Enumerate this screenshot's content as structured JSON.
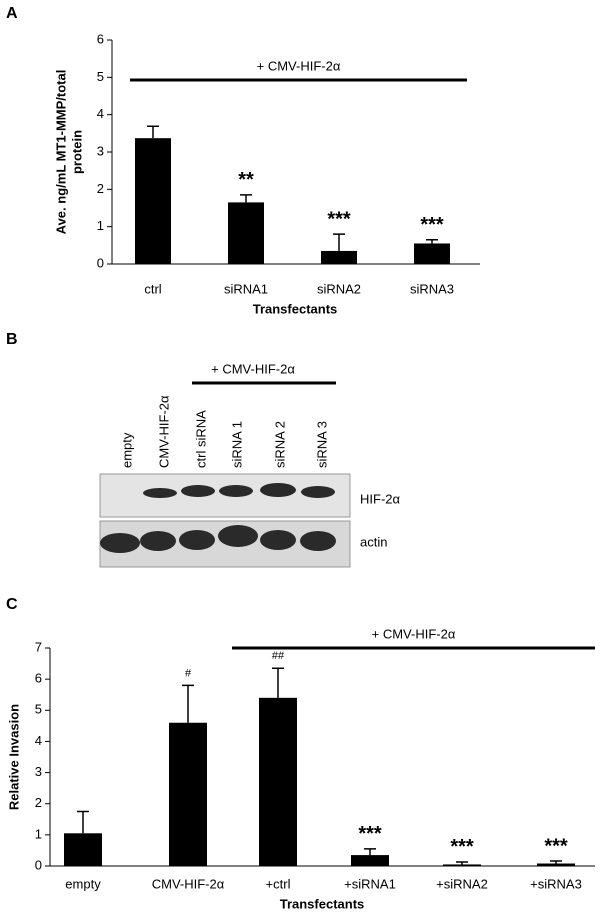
{
  "chart_data": [
    {
      "type": "bar",
      "panel": "A",
      "title": "+ CMV-HIF-2α",
      "ylabel": [
        "Ave. ng/mL MT1-MMP/total",
        "protein"
      ],
      "xlabel": "Transfectants",
      "categories": [
        "ctrl",
        "siRNA1",
        "siRNA2",
        "siRNA3"
      ],
      "values": [
        3.37,
        1.65,
        0.35,
        0.55
      ],
      "errors": [
        0.32,
        0.2,
        0.45,
        0.1
      ],
      "annotations": [
        null,
        "**",
        "***",
        "***"
      ],
      "color": "#000000",
      "ylim": [
        0,
        6
      ],
      "yticks": [
        0,
        1,
        2,
        3,
        4,
        5,
        6
      ],
      "grid": false
    },
    {
      "type": "bar",
      "panel": "C",
      "title": "+ CMV-HIF-2α",
      "ylabel": [
        "Relative Invasion"
      ],
      "xlabel": "Transfectants",
      "categories": [
        "empty",
        "CMV-HIF-2α",
        "+ctrl",
        "+siRNA1",
        "+siRNA2",
        "+siRNA3"
      ],
      "values": [
        1.05,
        4.6,
        5.4,
        0.35,
        0.05,
        0.08
      ],
      "errors": [
        0.7,
        1.2,
        0.95,
        0.2,
        0.08,
        0.08
      ],
      "annotations": [
        null,
        "#",
        "##",
        "***",
        "***",
        "***"
      ],
      "color": "#000000",
      "ylim": [
        0,
        7
      ],
      "yticks": [
        0,
        1,
        2,
        3,
        4,
        5,
        6,
        7
      ],
      "grid": false
    }
  ],
  "blot": {
    "panel": "B",
    "title": "+ CMV-HIF-2α",
    "lanes": [
      "empty",
      "CMV-HIF-2α",
      "ctrl siRNA",
      "siRNA 1",
      "siRNA 2",
      "siRNA 3"
    ],
    "rows": [
      "HIF-2α",
      "actin"
    ]
  }
}
